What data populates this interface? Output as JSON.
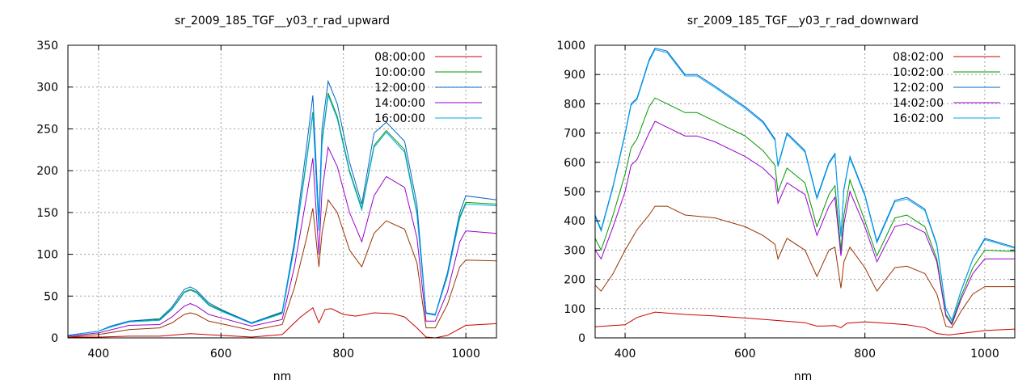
{
  "chart_data": [
    {
      "type": "line",
      "title": "sr_2009_185_TGF__y03_r_rad_upward",
      "xlabel": "nm",
      "ylabel": "",
      "xlim": [
        350,
        1050
      ],
      "ylim": [
        0,
        350
      ],
      "xticks": [
        400,
        600,
        800,
        1000
      ],
      "yticks": [
        0,
        50,
        100,
        150,
        200,
        250,
        300,
        350
      ],
      "grid": true,
      "legend": "top-right",
      "series": [
        {
          "name": "08:00:00",
          "color": "#cc0000",
          "x": [
            350,
            400,
            450,
            500,
            550,
            600,
            650,
            700,
            730,
            750,
            760,
            770,
            780,
            800,
            820,
            850,
            880,
            900,
            920,
            935,
            950,
            970,
            1000,
            1050
          ],
          "y": [
            1,
            1,
            2,
            2,
            5,
            3,
            1,
            4,
            25,
            36,
            18,
            34,
            35,
            28,
            26,
            30,
            29,
            25,
            12,
            1,
            0,
            3,
            15,
            17
          ]
        },
        {
          "name": "10:00:00",
          "color": "#009900",
          "x": [
            350,
            400,
            420,
            450,
            500,
            520,
            540,
            550,
            560,
            580,
            600,
            650,
            700,
            720,
            740,
            750,
            760,
            765,
            775,
            790,
            810,
            830,
            850,
            870,
            900,
            920,
            935,
            950,
            970,
            990,
            1000,
            1050
          ],
          "y": [
            3,
            8,
            14,
            20,
            22,
            35,
            55,
            58,
            55,
            40,
            33,
            18,
            30,
            110,
            215,
            270,
            130,
            235,
            293,
            265,
            200,
            155,
            230,
            248,
            225,
            150,
            30,
            28,
            75,
            145,
            162,
            160
          ]
        },
        {
          "name": "12:00:00",
          "color": "#0066cc",
          "x": [
            350,
            400,
            420,
            450,
            500,
            520,
            540,
            550,
            560,
            580,
            600,
            650,
            700,
            720,
            740,
            750,
            760,
            765,
            775,
            790,
            810,
            830,
            850,
            870,
            900,
            920,
            935,
            950,
            970,
            990,
            1000,
            1050
          ],
          "y": [
            3,
            8,
            14,
            20,
            23,
            37,
            58,
            61,
            57,
            42,
            34,
            18,
            31,
            115,
            230,
            290,
            140,
            250,
            307,
            280,
            210,
            160,
            245,
            258,
            235,
            160,
            30,
            28,
            78,
            150,
            170,
            165
          ]
        },
        {
          "name": "14:00:00",
          "color": "#9900cc",
          "x": [
            350,
            400,
            450,
            500,
            520,
            540,
            550,
            560,
            580,
            600,
            650,
            700,
            720,
            740,
            750,
            760,
            765,
            775,
            790,
            810,
            830,
            850,
            870,
            900,
            920,
            935,
            950,
            970,
            990,
            1000,
            1050
          ],
          "y": [
            2,
            6,
            15,
            16,
            25,
            38,
            41,
            38,
            28,
            24,
            14,
            22,
            85,
            170,
            215,
            100,
            175,
            228,
            205,
            150,
            115,
            170,
            193,
            180,
            120,
            20,
            20,
            55,
            115,
            128,
            125
          ]
        },
        {
          "name": "16:00:00",
          "color": "#00aaee",
          "x": [
            350,
            400,
            420,
            450,
            500,
            520,
            540,
            550,
            560,
            580,
            600,
            650,
            700,
            720,
            740,
            750,
            760,
            765,
            775,
            790,
            810,
            830,
            850,
            870,
            900,
            920,
            935,
            950,
            970,
            990,
            1000,
            1050
          ],
          "y": [
            3,
            8,
            13,
            19,
            21,
            34,
            54,
            57,
            54,
            39,
            32,
            17,
            29,
            108,
            212,
            268,
            128,
            232,
            290,
            262,
            198,
            153,
            228,
            246,
            222,
            148,
            29,
            27,
            74,
            143,
            160,
            158
          ]
        },
        {
          "name": "",
          "color": "#993300",
          "x": [
            350,
            400,
            450,
            500,
            520,
            540,
            550,
            560,
            580,
            600,
            650,
            700,
            720,
            740,
            750,
            760,
            765,
            775,
            790,
            810,
            830,
            850,
            870,
            900,
            920,
            935,
            950,
            970,
            990,
            1000,
            1050
          ],
          "y": [
            1,
            4,
            10,
            12,
            18,
            28,
            30,
            28,
            20,
            17,
            9,
            16,
            60,
            120,
            155,
            85,
            125,
            165,
            150,
            105,
            85,
            125,
            140,
            130,
            90,
            12,
            12,
            40,
            85,
            93,
            92
          ]
        }
      ]
    },
    {
      "type": "line",
      "title": "sr_2009_185_TGF__y03_r_rad_downward",
      "xlabel": "nm",
      "ylabel": "",
      "xlim": [
        350,
        1050
      ],
      "ylim": [
        0,
        1000
      ],
      "xticks": [
        400,
        600,
        800,
        1000
      ],
      "yticks": [
        0,
        100,
        200,
        300,
        400,
        500,
        600,
        700,
        800,
        900,
        1000
      ],
      "grid": true,
      "legend": "top-right",
      "series": [
        {
          "name": "08:02:00",
          "color": "#cc0000",
          "x": [
            350,
            400,
            420,
            450,
            500,
            550,
            600,
            650,
            700,
            720,
            750,
            760,
            770,
            800,
            850,
            870,
            900,
            920,
            940,
            960,
            1000,
            1050
          ],
          "y": [
            38,
            45,
            70,
            88,
            80,
            75,
            68,
            60,
            52,
            40,
            42,
            35,
            50,
            55,
            48,
            45,
            35,
            15,
            10,
            15,
            25,
            30
          ]
        },
        {
          "name": "10:02:00",
          "color": "#009900",
          "x": [
            350,
            360,
            380,
            400,
            410,
            420,
            440,
            450,
            470,
            500,
            520,
            550,
            600,
            630,
            650,
            655,
            670,
            700,
            720,
            740,
            750,
            760,
            765,
            775,
            800,
            820,
            850,
            870,
            900,
            920,
            935,
            945,
            960,
            980,
            1000,
            1050
          ],
          "y": [
            340,
            300,
            420,
            560,
            650,
            680,
            790,
            820,
            800,
            770,
            770,
            740,
            690,
            640,
            590,
            500,
            580,
            530,
            380,
            490,
            520,
            300,
            420,
            540,
            400,
            280,
            410,
            420,
            380,
            270,
            80,
            50,
            140,
            240,
            300,
            295
          ]
        },
        {
          "name": "12:02:00",
          "color": "#0066cc",
          "x": [
            350,
            360,
            380,
            400,
            410,
            420,
            440,
            450,
            470,
            500,
            520,
            550,
            600,
            630,
            650,
            655,
            670,
            700,
            720,
            740,
            750,
            760,
            765,
            775,
            800,
            820,
            850,
            870,
            900,
            920,
            935,
            945,
            960,
            980,
            1000,
            1050
          ],
          "y": [
            420,
            370,
            520,
            700,
            800,
            820,
            950,
            990,
            980,
            900,
            900,
            860,
            790,
            740,
            680,
            590,
            700,
            640,
            480,
            600,
            630,
            350,
            510,
            620,
            490,
            330,
            470,
            480,
            440,
            320,
            100,
            60,
            160,
            270,
            340,
            310
          ]
        },
        {
          "name": "14:02:00",
          "color": "#9900cc",
          "x": [
            350,
            360,
            380,
            400,
            410,
            420,
            440,
            450,
            470,
            500,
            520,
            550,
            600,
            630,
            650,
            655,
            670,
            700,
            720,
            740,
            750,
            760,
            765,
            775,
            800,
            820,
            850,
            870,
            900,
            920,
            935,
            945,
            960,
            980,
            1000,
            1050
          ],
          "y": [
            300,
            270,
            380,
            500,
            590,
            610,
            700,
            740,
            720,
            690,
            690,
            670,
            620,
            580,
            540,
            460,
            530,
            490,
            350,
            450,
            480,
            280,
            390,
            500,
            380,
            260,
            380,
            390,
            360,
            260,
            75,
            45,
            130,
            220,
            270,
            270
          ]
        },
        {
          "name": "16:02:00",
          "color": "#00aaee",
          "x": [
            350,
            360,
            380,
            400,
            410,
            420,
            440,
            450,
            470,
            500,
            520,
            550,
            600,
            630,
            650,
            655,
            670,
            700,
            720,
            740,
            750,
            760,
            765,
            775,
            800,
            820,
            850,
            870,
            900,
            920,
            935,
            945,
            960,
            980,
            1000,
            1050
          ],
          "y": [
            415,
            365,
            515,
            695,
            795,
            815,
            945,
            985,
            975,
            895,
            895,
            855,
            785,
            735,
            675,
            585,
            695,
            635,
            475,
            595,
            625,
            345,
            505,
            615,
            485,
            325,
            465,
            475,
            435,
            315,
            98,
            58,
            158,
            268,
            336,
            306
          ]
        },
        {
          "name": "",
          "color": "#993300",
          "x": [
            350,
            360,
            380,
            400,
            420,
            440,
            450,
            470,
            500,
            550,
            600,
            630,
            650,
            655,
            670,
            700,
            720,
            740,
            750,
            760,
            765,
            775,
            800,
            820,
            850,
            870,
            900,
            920,
            935,
            945,
            960,
            980,
            1000,
            1050
          ],
          "y": [
            180,
            160,
            220,
            300,
            370,
            420,
            450,
            450,
            420,
            410,
            380,
            350,
            320,
            270,
            340,
            300,
            210,
            300,
            310,
            170,
            260,
            310,
            240,
            160,
            240,
            245,
            220,
            150,
            40,
            35,
            90,
            150,
            175,
            175
          ]
        }
      ]
    }
  ]
}
